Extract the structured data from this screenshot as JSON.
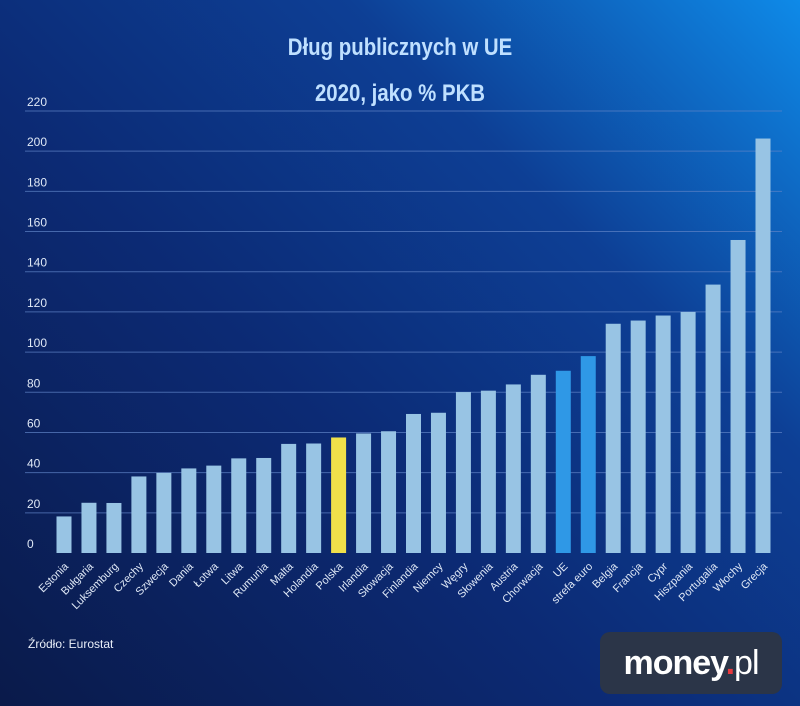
{
  "chart_data": {
    "type": "bar",
    "title": "Dług publicznych w UE",
    "subtitle": "2020, jako % PKB",
    "categories": [
      "Estonia",
      "Bułgaria",
      "Luksemburg",
      "Czechy",
      "Szwecja",
      "Dania",
      "Łotwa",
      "Litwa",
      "Rumunia",
      "Malta",
      "Holandia",
      "Polska",
      "Irlandia",
      "Słowacja",
      "Finlandia",
      "Niemcy",
      "Węgry",
      "Słowenia",
      "Austria",
      "Chorwacja",
      "UE",
      "strefa euro",
      "Belgia",
      "Francja",
      "Cypr",
      "Hiszpania",
      "Portugalia",
      "Włochy",
      "Grecja"
    ],
    "values": [
      18.2,
      25.0,
      24.9,
      38.1,
      39.9,
      42.1,
      43.5,
      47.1,
      47.3,
      54.3,
      54.5,
      57.5,
      59.5,
      60.6,
      69.2,
      69.8,
      80.1,
      80.8,
      83.9,
      88.7,
      90.7,
      98.0,
      114.1,
      115.7,
      118.2,
      120.0,
      133.6,
      155.8,
      206.3
    ],
    "highlight": {
      "Polska": "#f0e04a",
      "UE": "#2f98e6",
      "strefa euro": "#2f98e6"
    },
    "default_color": "#98c4e4",
    "ylim": [
      0,
      220
    ],
    "yticks": [
      0,
      20,
      40,
      60,
      80,
      100,
      120,
      140,
      160,
      180,
      200,
      220
    ],
    "grid": true,
    "xlabel": "",
    "ylabel": ""
  },
  "source": "Źródło: Eurostat",
  "logo": {
    "text": "money",
    "dot": ".",
    "suffix": "pl"
  }
}
